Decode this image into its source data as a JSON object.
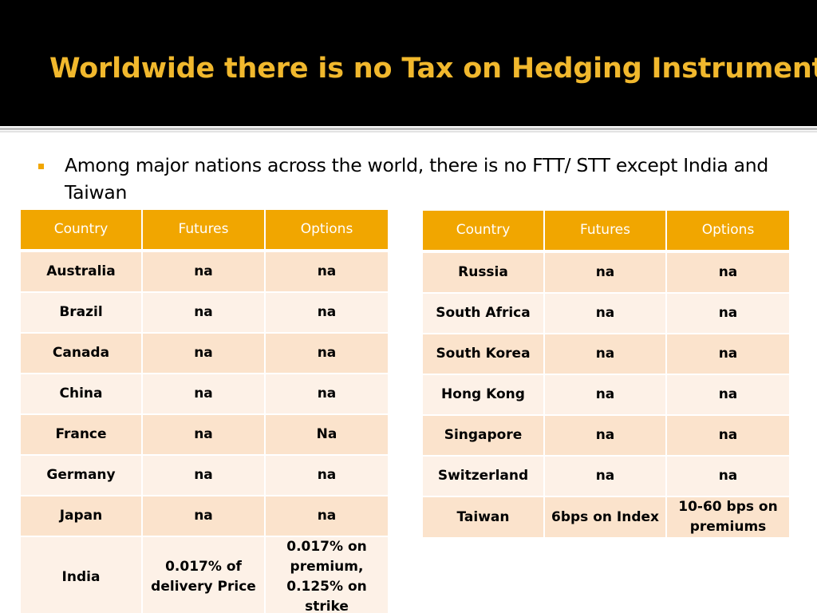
{
  "slide": {
    "title": "Worldwide there is no Tax on Hedging Instruments",
    "bullet": "Among major nations across the world, there is no FTT/ STT except India and Taiwan"
  },
  "colors": {
    "title": "#f1b82d",
    "header_bg": "#f1a600",
    "row_odd": "#fbe3cc",
    "row_even": "#fdf1e7",
    "bullet": "#f1a600"
  },
  "table_left": {
    "headers": [
      "Country",
      "Futures",
      "Options"
    ],
    "rows": [
      [
        "Australia",
        "na",
        "na"
      ],
      [
        "Brazil",
        "na",
        "na"
      ],
      [
        "Canada",
        "na",
        "na"
      ],
      [
        "China",
        "na",
        "na"
      ],
      [
        "France",
        "na",
        "Na"
      ],
      [
        "Germany",
        "na",
        "na"
      ],
      [
        "Japan",
        "na",
        "na"
      ],
      [
        "India",
        "0.017% of delivery Price",
        "0.017% on premium, 0.125% on strike"
      ]
    ]
  },
  "table_right": {
    "headers": [
      "Country",
      "Futures",
      "Options"
    ],
    "rows": [
      [
        "Russia",
        "na",
        "na"
      ],
      [
        "South Africa",
        "na",
        "na"
      ],
      [
        "South Korea",
        "na",
        "na"
      ],
      [
        "Hong Kong",
        "na",
        "na"
      ],
      [
        "Singapore",
        "na",
        "na"
      ],
      [
        "Switzerland",
        "na",
        "na"
      ],
      [
        "Taiwan",
        "6bps on Index",
        "10-60 bps on premiums"
      ]
    ]
  }
}
